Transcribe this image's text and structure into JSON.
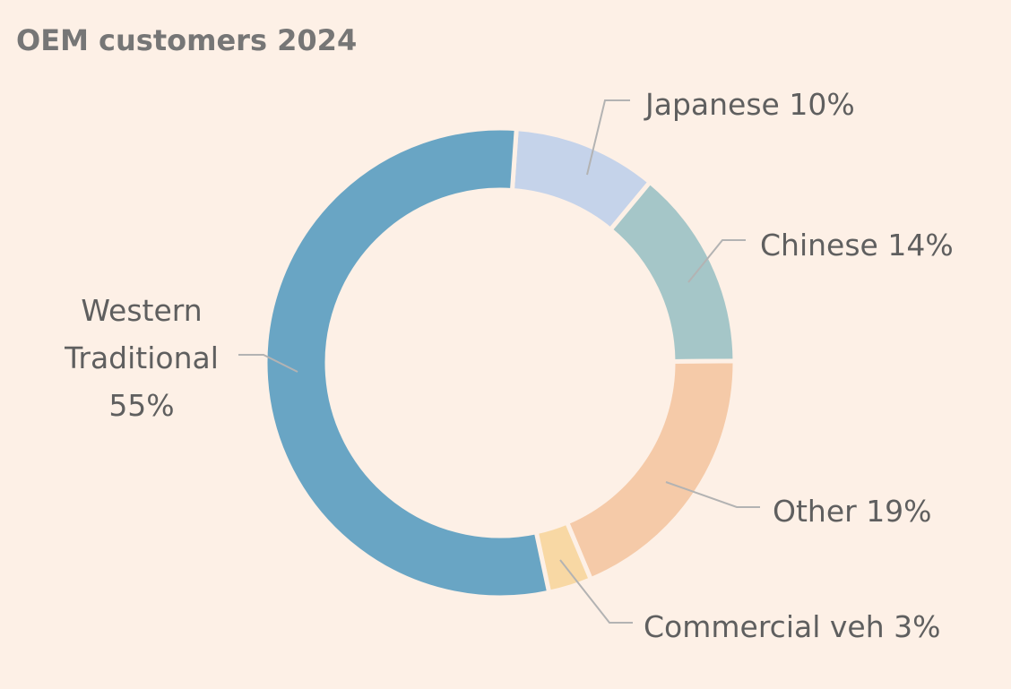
{
  "chart_data": {
    "type": "pie",
    "variant": "donut",
    "title": "OEM customers 2024",
    "legend": "none",
    "slices": [
      {
        "label": "Japanese 10%",
        "value": 10,
        "color": "#c5d3ea"
      },
      {
        "label": "Chinese 14%",
        "value": 14,
        "color": "#a5c6c8"
      },
      {
        "label": "Other 19%",
        "value": 19,
        "color": "#f5caa8"
      },
      {
        "label": "Commercial veh 3%",
        "value": 3,
        "color": "#f8d8a4"
      },
      {
        "label": "Western\nTraditional\n55%",
        "value": 55,
        "color": "#69a5c4"
      }
    ]
  },
  "colors": {
    "background": "#fdf0e6",
    "text": "#5f5f5f",
    "title": "#767676",
    "leader_line": "#b3b3b3"
  }
}
